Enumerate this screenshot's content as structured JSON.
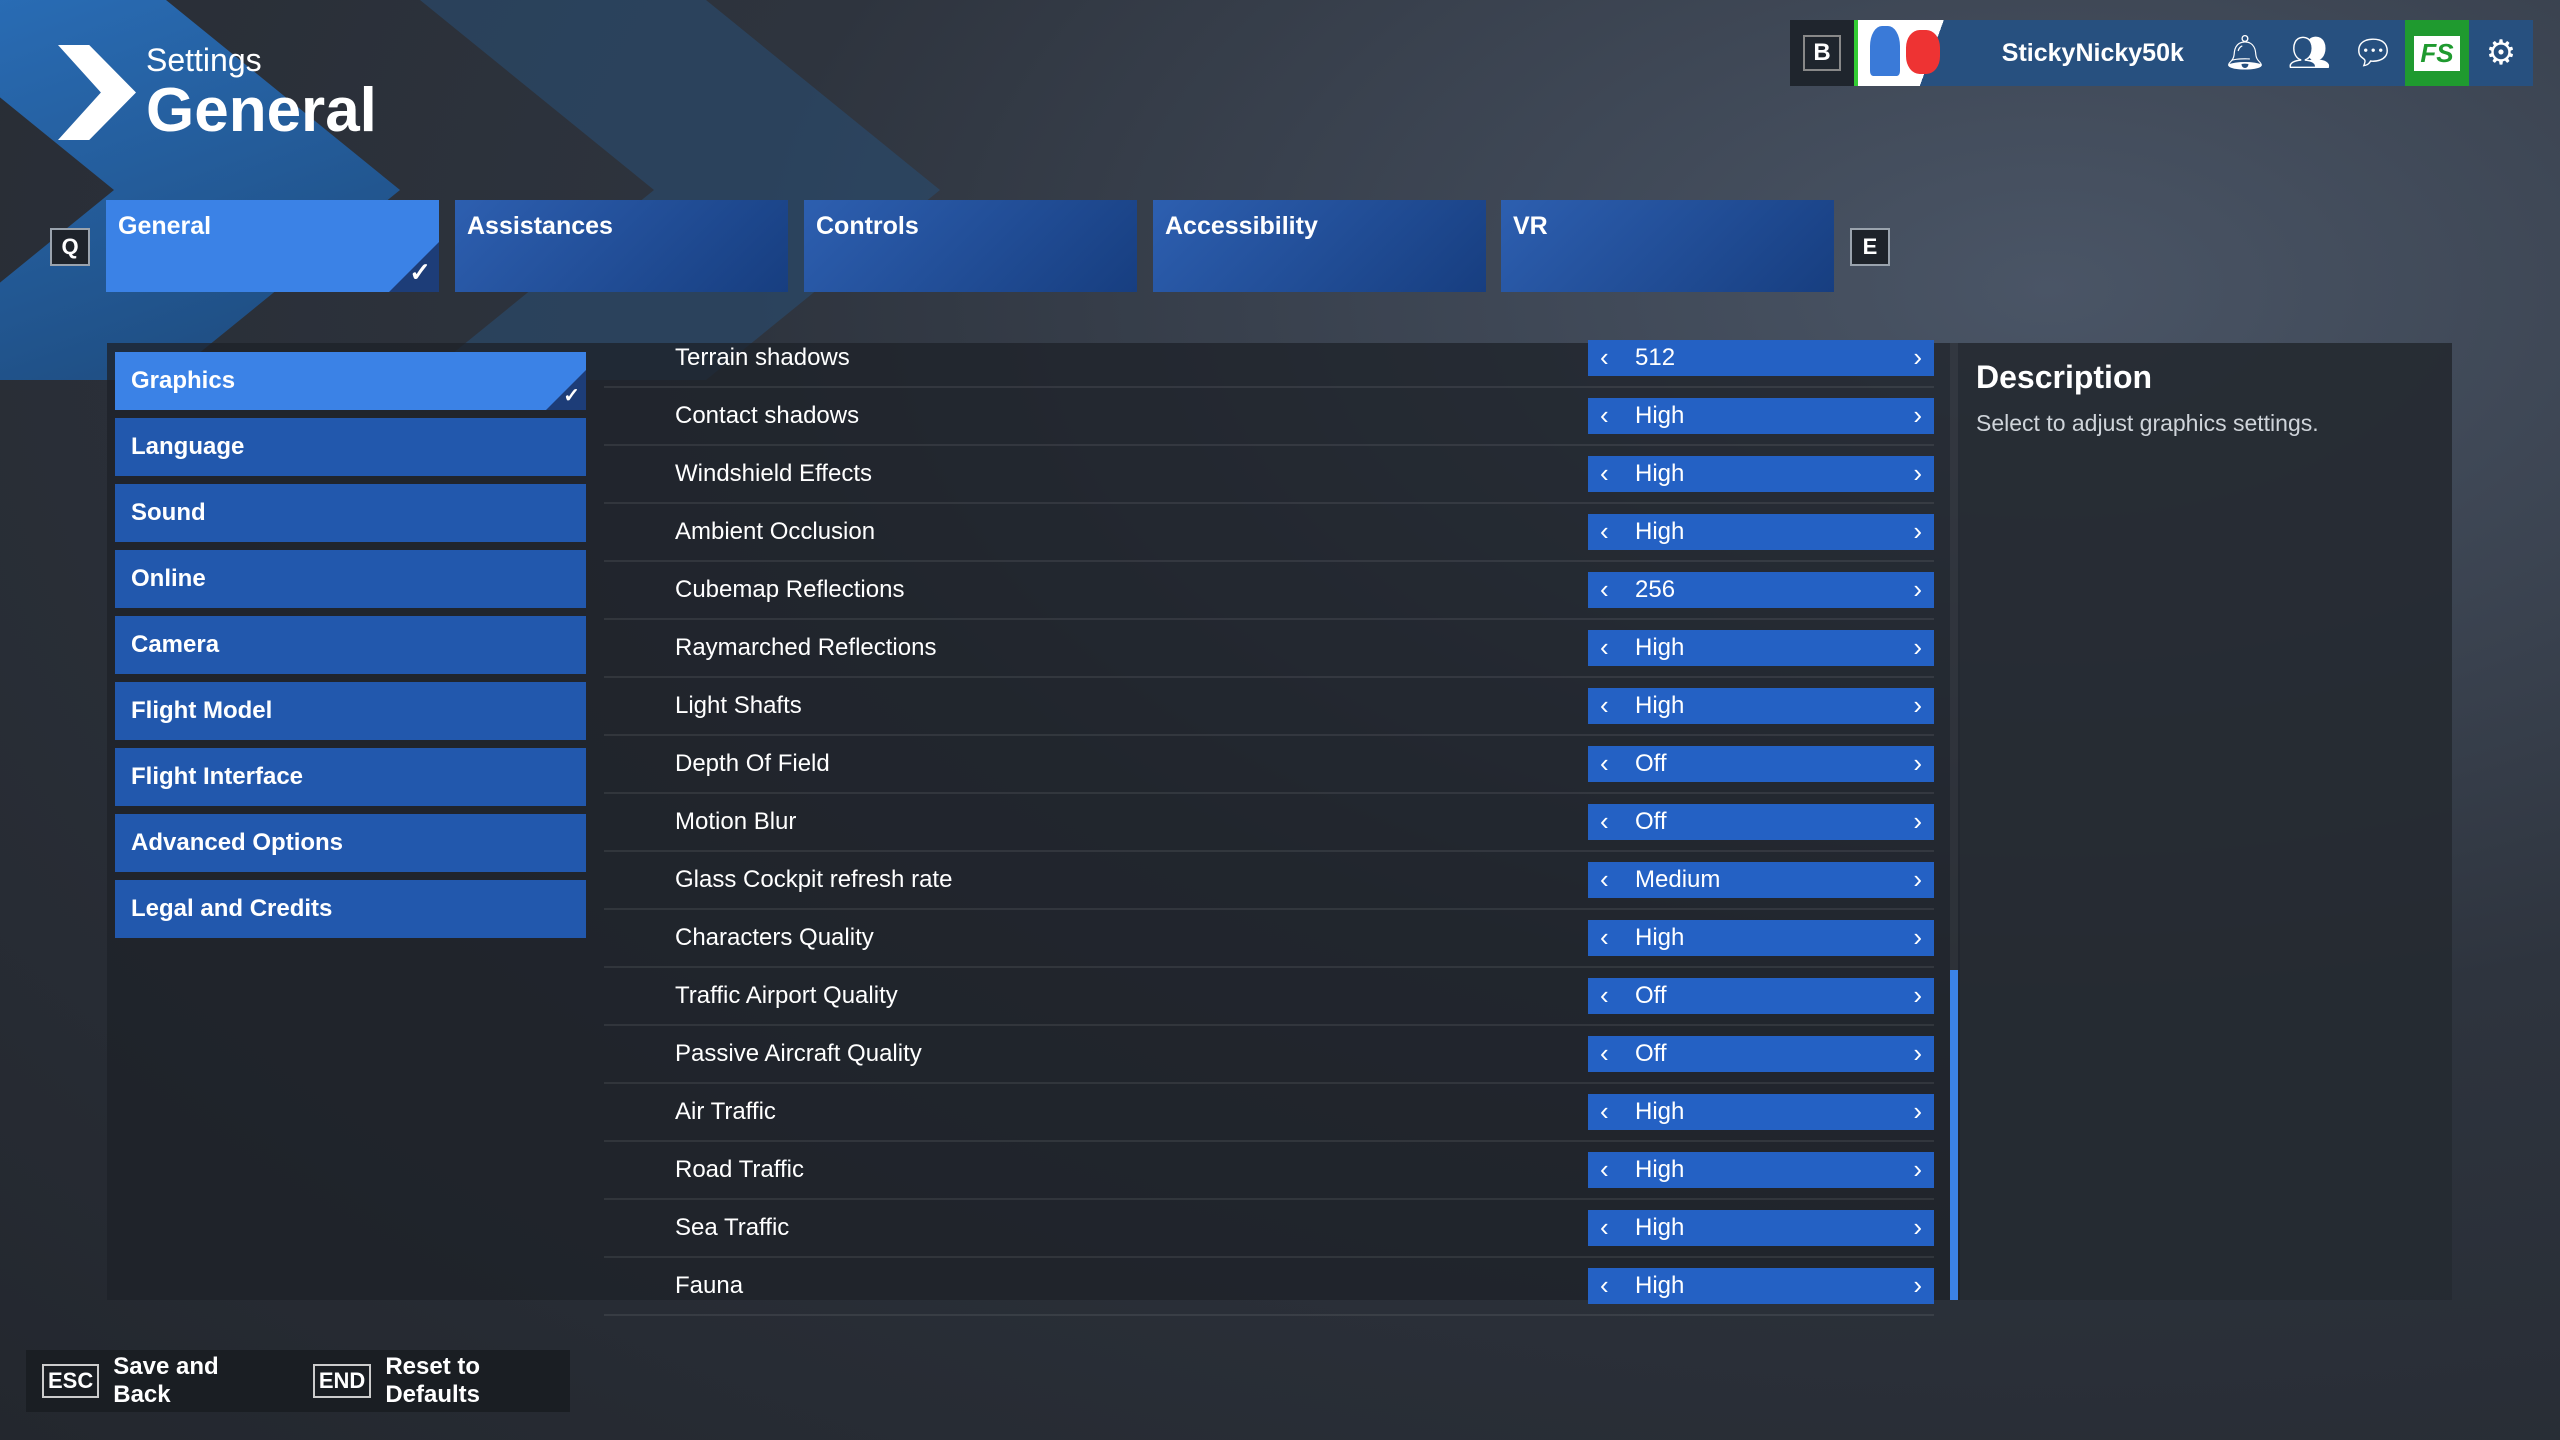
{
  "header": {
    "section": "Settings",
    "title": "General"
  },
  "user": {
    "name": "StickyNicky50k",
    "key": "B"
  },
  "tabs": {
    "prev_key": "Q",
    "next_key": "E",
    "items": [
      {
        "label": "General",
        "active": true
      },
      {
        "label": "Assistances"
      },
      {
        "label": "Controls"
      },
      {
        "label": "Accessibility"
      },
      {
        "label": "VR"
      }
    ]
  },
  "sidebar": [
    {
      "label": "Graphics",
      "active": true
    },
    {
      "label": "Language"
    },
    {
      "label": "Sound"
    },
    {
      "label": "Online"
    },
    {
      "label": "Camera"
    },
    {
      "label": "Flight Model"
    },
    {
      "label": "Flight Interface"
    },
    {
      "label": "Advanced Options"
    },
    {
      "label": "Legal and Credits"
    }
  ],
  "settings": [
    {
      "label": "Terrain shadows",
      "value": "512"
    },
    {
      "label": "Contact shadows",
      "value": "High"
    },
    {
      "label": "Windshield Effects",
      "value": "High"
    },
    {
      "label": "Ambient Occlusion",
      "value": "High"
    },
    {
      "label": "Cubemap Reflections",
      "value": "256"
    },
    {
      "label": "Raymarched Reflections",
      "value": "High"
    },
    {
      "label": "Light Shafts",
      "value": "High"
    },
    {
      "label": "Depth Of Field",
      "value": "Off"
    },
    {
      "label": "Motion Blur",
      "value": "Off"
    },
    {
      "label": "Glass Cockpit refresh rate",
      "value": "Medium"
    },
    {
      "label": "Characters Quality",
      "value": "High"
    },
    {
      "label": "Traffic Airport Quality",
      "value": "Off"
    },
    {
      "label": "Passive Aircraft Quality",
      "value": "Off"
    },
    {
      "label": "Air Traffic",
      "value": "High"
    },
    {
      "label": "Road Traffic",
      "value": "High"
    },
    {
      "label": "Sea Traffic",
      "value": "High"
    },
    {
      "label": "Fauna",
      "value": "High"
    }
  ],
  "description": {
    "title": "Description",
    "text": "Select to adjust graphics settings."
  },
  "footer": {
    "save_key": "ESC",
    "save_label": "Save and Back",
    "reset_key": "END",
    "reset_label": "Reset to Defaults"
  },
  "store_label": "FS",
  "colors": {
    "accent": "#3b82e6",
    "tab": "#2258ad",
    "store": "#1f9a2f"
  }
}
